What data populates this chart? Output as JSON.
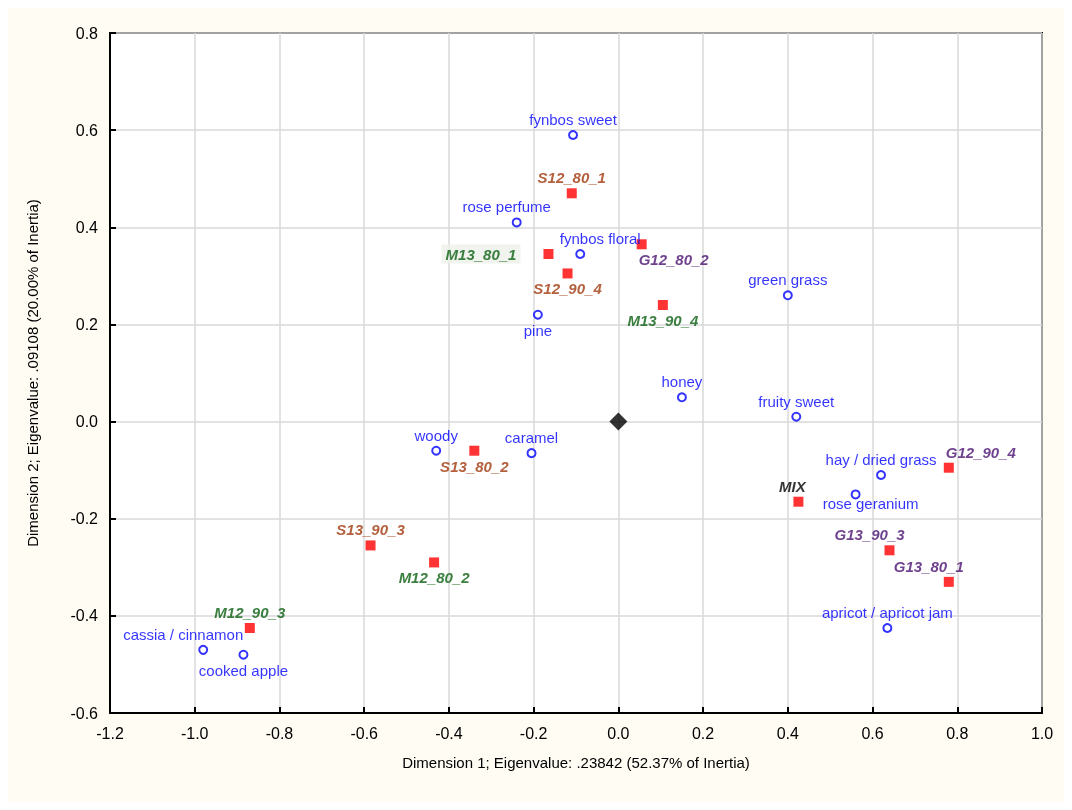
{
  "chart_data": {
    "type": "scatter",
    "xlabel": "Dimension 1; Eigenvalue: .23842 (52.37% of Inertia)",
    "ylabel": "Dimension 2; Eigenvalue: .09108 (20.00% of Inertia)",
    "xlim": [
      -1.2,
      1.0
    ],
    "xticks": [
      -1.2,
      {
        "value": -1,
        "label": "-1.0"
      },
      -0.8,
      -0.6,
      -0.4,
      -0.2,
      {
        "value": 0,
        "label": "0.0"
      },
      0.2,
      0.4,
      0.6,
      0.8,
      {
        "value": 1,
        "label": "1.0"
      }
    ],
    "ylim": [
      -0.6,
      0.8
    ],
    "yticks": [
      -0.6,
      -0.4,
      -0.2,
      {
        "value": 0,
        "label": "0.0"
      },
      0.2,
      0.4,
      0.6,
      0.8
    ],
    "grid": true,
    "series": [
      {
        "color": "#0000ff",
        "marker": "circle",
        "x": [
          -0.107,
          -0.24,
          -0.09,
          -0.19,
          0.4,
          0.15,
          0.42,
          -0.43,
          -0.205,
          0.62,
          0.56,
          0.635,
          -0.98,
          -0.885
        ],
        "values": [
          0.59,
          0.41,
          0.345,
          0.22,
          0.26,
          0.05,
          0.01,
          -0.06,
          -0.065,
          -0.11,
          -0.15,
          -0.425,
          -0.47,
          -0.48
        ],
        "value_labels": [
          "fynbos sweet",
          "rose perfume",
          "fynbos floral",
          "pine",
          "green grass",
          "honey",
          "fruity sweet",
          "woody",
          "caramel",
          "hay / dried grass",
          "rose geranium",
          "apricot / apricot jam",
          "cassia / cinnamon",
          "cooked apple"
        ]
      },
      {
        "color": "#ff0000",
        "marker": "square",
        "x": [
          -0.11,
          -0.12,
          -0.34,
          -0.585
        ],
        "values": [
          0.47,
          0.305,
          -0.06,
          -0.255
        ],
        "value_labels": [
          "S12_80_1",
          "S12_90_4",
          "S13_80_2",
          "S13_90_3"
        ]
      },
      {
        "color": "#ff0000",
        "marker": "square",
        "x": [
          -0.165,
          0.105,
          -0.435,
          -0.87
        ],
        "values": [
          0.345,
          0.24,
          -0.29,
          -0.425
        ],
        "value_labels": [
          "M13_80_1",
          "M13_90_4",
          "M12_80_2",
          "M12_90_3"
        ]
      },
      {
        "color": "#ff0000",
        "marker": "square",
        "x": [
          0.055,
          0.78,
          0.64,
          0.78
        ],
        "values": [
          0.365,
          -0.095,
          -0.265,
          -0.33
        ],
        "value_labels": [
          "G12_80_2",
          "G12_90_4",
          "G13_90_3",
          "G13_80_1"
        ]
      },
      {
        "color": "#ff0000",
        "marker": "square",
        "x": [
          0.425
        ],
        "values": [
          -0.165
        ],
        "value_labels": [
          "MIX"
        ]
      },
      {
        "color": "#000000",
        "marker": "diamond",
        "x": [
          0
        ],
        "values": [
          0
        ]
      }
    ]
  }
}
